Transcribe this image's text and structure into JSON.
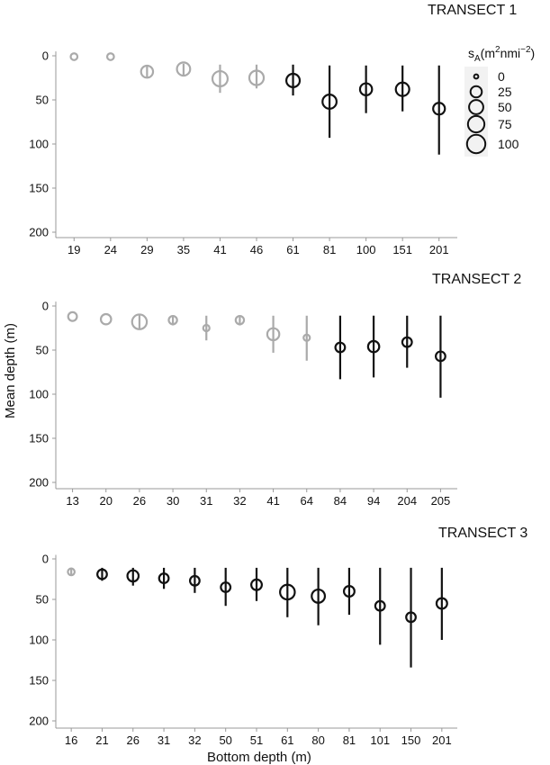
{
  "chart_data": {
    "type": "scatter",
    "xlabel": "Bottom depth (m)",
    "ylabel": "Mean depth (m)",
    "ylim": [
      0,
      200
    ],
    "y_reversed": true,
    "y_ticks": [
      0,
      50,
      100,
      150,
      200
    ],
    "legend": {
      "title": "sA(m2nmi−2)",
      "title_parts": {
        "s": "s",
        "sub": "A",
        "open": "(m",
        "sup1": "2",
        "mid": "nmi",
        "sup2": "−2",
        "close": ")"
      },
      "placement": "top-right",
      "entries": [
        {
          "label": "0",
          "value": 0
        },
        {
          "label": "25",
          "value": 25
        },
        {
          "label": "50",
          "value": 50
        },
        {
          "label": "75",
          "value": 75
        },
        {
          "label": "100",
          "value": 100
        }
      ]
    },
    "panels": [
      {
        "title": "TRANSECT 1",
        "categories": [
          "19",
          "24",
          "29",
          "35",
          "41",
          "46",
          "61",
          "81",
          "100",
          "151",
          "201"
        ],
        "points": [
          {
            "bottom_depth": "19",
            "mean_depth": 1,
            "depth_min": 1,
            "depth_max": 1,
            "sA": 3,
            "color": "#aaaaaa"
          },
          {
            "bottom_depth": "24",
            "mean_depth": 1,
            "depth_min": 1,
            "depth_max": 1,
            "sA": 3,
            "color": "#aaaaaa"
          },
          {
            "bottom_depth": "29",
            "mean_depth": 18,
            "depth_min": 11,
            "depth_max": 25,
            "sA": 30,
            "color": "#aaaaaa"
          },
          {
            "bottom_depth": "35",
            "mean_depth": 15,
            "depth_min": 9,
            "depth_max": 22,
            "sA": 40,
            "color": "#aaaaaa"
          },
          {
            "bottom_depth": "41",
            "mean_depth": 26,
            "depth_min": 10,
            "depth_max": 42,
            "sA": 60,
            "color": "#aaaaaa"
          },
          {
            "bottom_depth": "46",
            "mean_depth": 25,
            "depth_min": 10,
            "depth_max": 37,
            "sA": 52,
            "color": "#aaaaaa"
          },
          {
            "bottom_depth": "61",
            "mean_depth": 28,
            "depth_min": 10,
            "depth_max": 45,
            "sA": 42,
            "color": "#111111"
          },
          {
            "bottom_depth": "81",
            "mean_depth": 52,
            "depth_min": 11,
            "depth_max": 93,
            "sA": 48,
            "color": "#111111"
          },
          {
            "bottom_depth": "100",
            "mean_depth": 38,
            "depth_min": 11,
            "depth_max": 65,
            "sA": 30,
            "color": "#111111"
          },
          {
            "bottom_depth": "151",
            "mean_depth": 38,
            "depth_min": 11,
            "depth_max": 63,
            "sA": 42,
            "color": "#111111"
          },
          {
            "bottom_depth": "201",
            "mean_depth": 60,
            "depth_min": 11,
            "depth_max": 112,
            "sA": 28,
            "color": "#111111"
          }
        ]
      },
      {
        "title": "TRANSECT 2",
        "categories": [
          "13",
          "20",
          "26",
          "30",
          "31",
          "32",
          "41",
          "64",
          "84",
          "94",
          "204",
          "205"
        ],
        "points": [
          {
            "bottom_depth": "13",
            "mean_depth": 12,
            "depth_min": 12,
            "depth_max": 12,
            "sA": 10,
            "color": "#aaaaaa"
          },
          {
            "bottom_depth": "20",
            "mean_depth": 15,
            "depth_min": 15,
            "depth_max": 15,
            "sA": 18,
            "color": "#aaaaaa"
          },
          {
            "bottom_depth": "26",
            "mean_depth": 18,
            "depth_min": 10,
            "depth_max": 26,
            "sA": 55,
            "color": "#aaaaaa"
          },
          {
            "bottom_depth": "30",
            "mean_depth": 16,
            "depth_min": 11,
            "depth_max": 22,
            "sA": 8,
            "color": "#aaaaaa"
          },
          {
            "bottom_depth": "31",
            "mean_depth": 25,
            "depth_min": 11,
            "depth_max": 39,
            "sA": 2,
            "color": "#aaaaaa"
          },
          {
            "bottom_depth": "32",
            "mean_depth": 16,
            "depth_min": 11,
            "depth_max": 22,
            "sA": 8,
            "color": "#aaaaaa"
          },
          {
            "bottom_depth": "41",
            "mean_depth": 32,
            "depth_min": 11,
            "depth_max": 53,
            "sA": 30,
            "color": "#aaaaaa"
          },
          {
            "bottom_depth": "64",
            "mean_depth": 36,
            "depth_min": 11,
            "depth_max": 62,
            "sA": 2,
            "color": "#aaaaaa"
          },
          {
            "bottom_depth": "84",
            "mean_depth": 47,
            "depth_min": 11,
            "depth_max": 83,
            "sA": 14,
            "color": "#111111"
          },
          {
            "bottom_depth": "94",
            "mean_depth": 46,
            "depth_min": 11,
            "depth_max": 81,
            "sA": 24,
            "color": "#111111"
          },
          {
            "bottom_depth": "204",
            "mean_depth": 41,
            "depth_min": 11,
            "depth_max": 70,
            "sA": 14,
            "color": "#111111"
          },
          {
            "bottom_depth": "205",
            "mean_depth": 57,
            "depth_min": 11,
            "depth_max": 104,
            "sA": 14,
            "color": "#111111"
          }
        ]
      },
      {
        "title": "TRANSECT 3",
        "categories": [
          "16",
          "21",
          "26",
          "31",
          "32",
          "50",
          "51",
          "61",
          "80",
          "81",
          "101",
          "150",
          "201"
        ],
        "points": [
          {
            "bottom_depth": "16",
            "mean_depth": 16,
            "depth_min": 11,
            "depth_max": 21,
            "sA": 3,
            "color": "#aaaaaa"
          },
          {
            "bottom_depth": "21",
            "mean_depth": 19,
            "depth_min": 11,
            "depth_max": 27,
            "sA": 14,
            "color": "#111111"
          },
          {
            "bottom_depth": "26",
            "mean_depth": 21,
            "depth_min": 11,
            "depth_max": 33,
            "sA": 24,
            "color": "#111111"
          },
          {
            "bottom_depth": "31",
            "mean_depth": 24,
            "depth_min": 11,
            "depth_max": 37,
            "sA": 14,
            "color": "#111111"
          },
          {
            "bottom_depth": "32",
            "mean_depth": 27,
            "depth_min": 11,
            "depth_max": 42,
            "sA": 14,
            "color": "#111111"
          },
          {
            "bottom_depth": "50",
            "mean_depth": 35,
            "depth_min": 11,
            "depth_max": 58,
            "sA": 14,
            "color": "#111111"
          },
          {
            "bottom_depth": "51",
            "mean_depth": 32,
            "depth_min": 11,
            "depth_max": 52,
            "sA": 20,
            "color": "#111111"
          },
          {
            "bottom_depth": "61",
            "mean_depth": 41,
            "depth_min": 11,
            "depth_max": 72,
            "sA": 55,
            "color": "#111111"
          },
          {
            "bottom_depth": "80",
            "mean_depth": 46,
            "depth_min": 11,
            "depth_max": 82,
            "sA": 40,
            "color": "#111111"
          },
          {
            "bottom_depth": "81",
            "mean_depth": 40,
            "depth_min": 11,
            "depth_max": 69,
            "sA": 20,
            "color": "#111111"
          },
          {
            "bottom_depth": "101",
            "mean_depth": 58,
            "depth_min": 11,
            "depth_max": 106,
            "sA": 14,
            "color": "#111111"
          },
          {
            "bottom_depth": "150",
            "mean_depth": 72,
            "depth_min": 11,
            "depth_max": 134,
            "sA": 14,
            "color": "#111111"
          },
          {
            "bottom_depth": "201",
            "mean_depth": 55,
            "depth_min": 11,
            "depth_max": 100,
            "sA": 20,
            "color": "#111111"
          }
        ]
      }
    ]
  }
}
